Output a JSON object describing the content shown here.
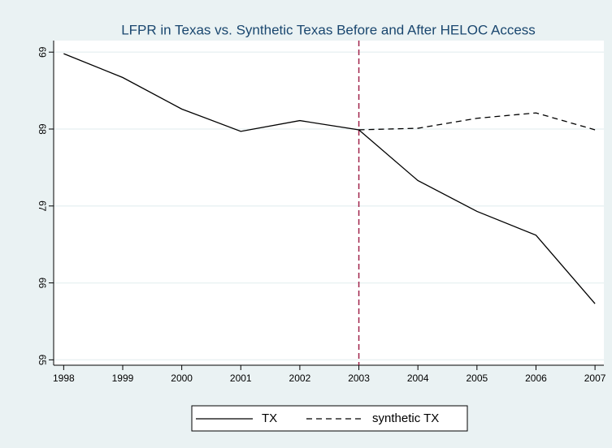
{
  "chart_data": {
    "type": "line",
    "title": "LFPR in Texas vs. Synthetic Texas Before and After HELOC Access",
    "x": [
      1998,
      1999,
      2000,
      2001,
      2002,
      2003,
      2004,
      2005,
      2006,
      2007
    ],
    "series": [
      {
        "name": "TX",
        "color": "#000000",
        "dash": "solid",
        "values": [
          68.98,
          68.67,
          68.26,
          67.97,
          68.11,
          67.99,
          67.33,
          66.93,
          66.62,
          65.73
        ]
      },
      {
        "name": "synthetic TX",
        "color": "#000000",
        "dash": "dashed",
        "values": [
          null,
          null,
          null,
          null,
          null,
          67.99,
          68.01,
          68.14,
          68.21,
          67.99
        ]
      }
    ],
    "xlim": [
      1997.83,
      2007.15
    ],
    "xticks": [
      1998,
      1999,
      2000,
      2001,
      2002,
      2003,
      2004,
      2005,
      2006,
      2007
    ],
    "ylim": [
      64.93,
      69.15
    ],
    "yticks": [
      65,
      66,
      67,
      68,
      69
    ],
    "grid": true,
    "vline": {
      "x": 2003,
      "color": "#a0224a"
    },
    "legend": "bottom"
  }
}
